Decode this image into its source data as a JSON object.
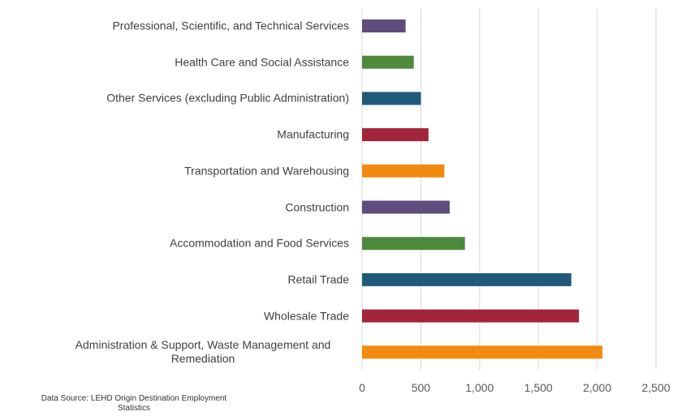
{
  "chart_data": {
    "type": "hbar",
    "categories": [
      "Professional, Scientific, and Technical Services",
      "Health Care and Social Assistance",
      "Other Services (excluding Public Administration)",
      "Manufacturing",
      "Transportation and Warehousing",
      "Construction",
      "Accommodation and Food Services",
      "Retail Trade",
      "Wholesale Trade",
      "Administration & Support, Waste Management and Remediation"
    ],
    "values": [
      370,
      440,
      500,
      565,
      700,
      745,
      875,
      1780,
      1845,
      2045
    ],
    "colors": [
      "#5f4b7d",
      "#4e8a3e",
      "#1f5a7a",
      "#a3253a",
      "#f28a0f",
      "#5f4b7d",
      "#4e8a3e",
      "#1f5a7a",
      "#a3253a",
      "#f28a0f"
    ],
    "xlim": [
      0,
      2500
    ],
    "xticks": [
      0,
      500,
      {
        "value": 1000,
        "label": "1,000"
      },
      {
        "value": 1500,
        "label": "1,500"
      },
      {
        "value": 2000,
        "label": "2,000"
      },
      {
        "value": 2500,
        "label": "2,500"
      }
    ],
    "grid": true,
    "source": "Data Source: LEHD Origin Destination Employment Statistics"
  }
}
